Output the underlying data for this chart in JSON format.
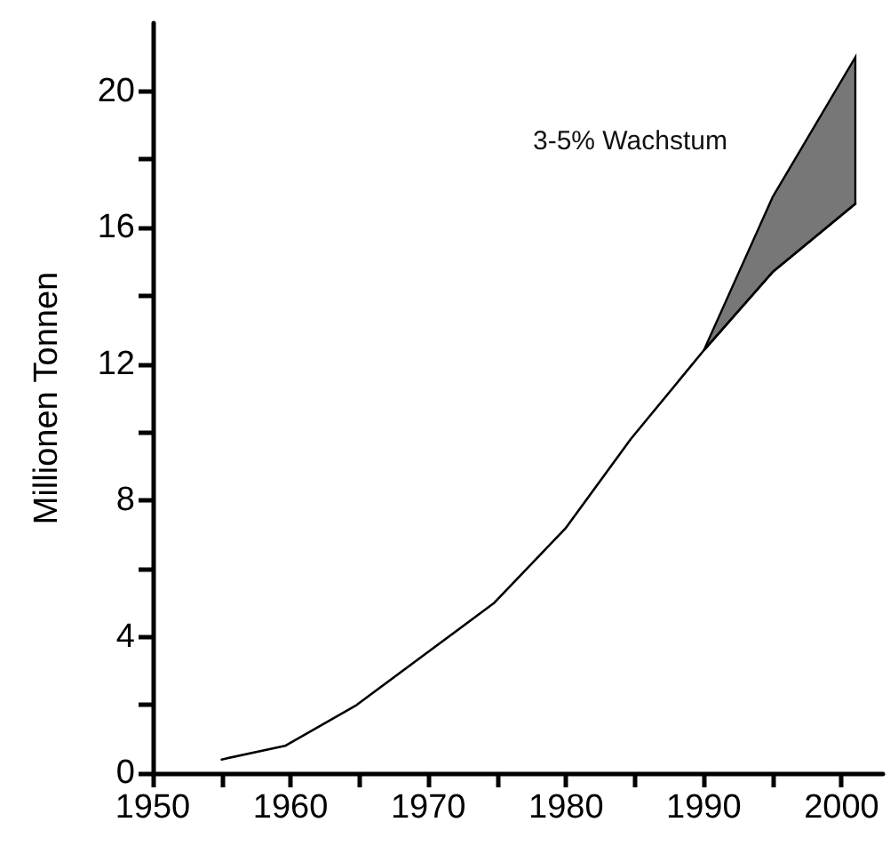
{
  "chart_data": {
    "type": "line",
    "ylabel": "Millionen Tonnen",
    "xlim": [
      1950,
      2003
    ],
    "xticks": [
      1950,
      {
        "value": 1955,
        "label": null
      },
      1960,
      {
        "value": 1965,
        "label": null
      },
      1970,
      {
        "value": 1975,
        "label": null
      },
      1980,
      {
        "value": 1985,
        "label": null
      },
      1990,
      {
        "value": 1995,
        "label": null
      },
      2000
    ],
    "ylim": [
      0,
      22
    ],
    "yticks": [
      0,
      {
        "value": 2,
        "label": null
      },
      4,
      {
        "value": 6,
        "label": null
      },
      8,
      {
        "value": 10,
        "label": null
      },
      12,
      {
        "value": 14,
        "label": null
      },
      16,
      {
        "value": 18,
        "label": null
      },
      20
    ],
    "series": [
      {
        "color": "#000000",
        "x": [
          1955,
          1959.6,
          1964.8,
          1969.8,
          1974.8,
          1980,
          1984.7,
          1990,
          1995,
          2001
        ],
        "values": [
          0.4,
          0.8,
          2.0,
          3.5,
          5.0,
          7.2,
          9.8,
          12.4,
          14.7,
          16.7
        ],
        "lower": [
          null,
          null,
          null,
          null,
          null,
          null,
          null,
          12.4,
          14.7,
          16.7
        ],
        "upper": [
          null,
          null,
          null,
          null,
          null,
          null,
          null,
          12.4,
          16.9,
          21.0
        ]
      }
    ],
    "annotations": [
      "3-5% Wachstum"
    ],
    "grid": false,
    "marker": "none",
    "line_style": "solid"
  }
}
